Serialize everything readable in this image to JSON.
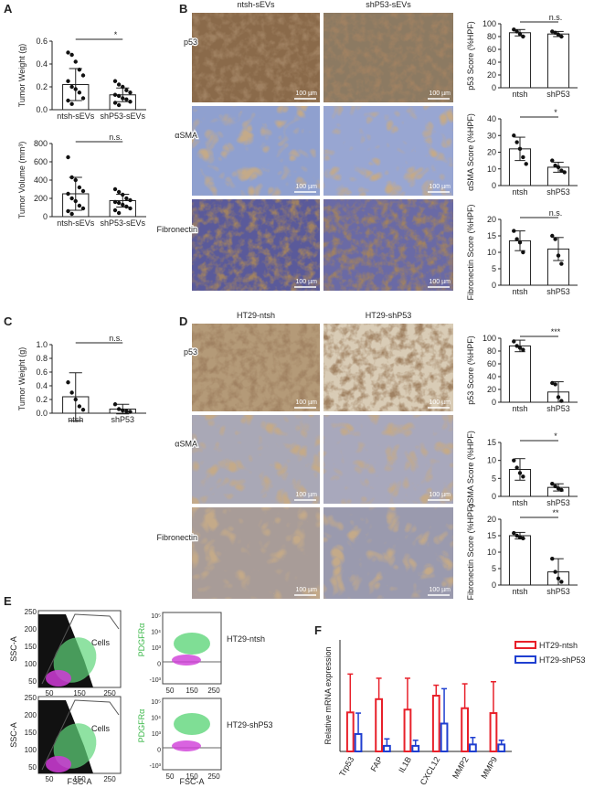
{
  "panel_labels": [
    "A",
    "B",
    "C",
    "D",
    "E",
    "F"
  ],
  "micrographs": [
    {
      "columns": [
        "ntsh-sEVs",
        "shP53-sEVs"
      ],
      "rows": [
        "p53",
        "αSMA",
        "Fibronectin"
      ],
      "scale_bar": "100 µm"
    },
    {
      "columns": [
        "HT29-ntsh",
        "HT29-shP53"
      ],
      "rows": [
        "p53",
        "αSMA",
        "Fibronectin"
      ],
      "scale_bar": "100 µm"
    }
  ],
  "flow": {
    "samples": [
      "HT29-ntsh",
      "HT29-shP53"
    ],
    "gate": "Cells",
    "x_label": "FSC-A",
    "y_label": "SSC-A",
    "y2_label": "PDGFRα",
    "x_ticks": [
      "50",
      "150",
      "250"
    ],
    "y_ticks": [
      "250",
      "200",
      "150",
      "100",
      "50"
    ],
    "y2_ticks": [
      "10⁵",
      "10⁴",
      "10³",
      "0",
      "-10³"
    ]
  },
  "chart_data": [
    {
      "type": "bar",
      "ylabel": "Tumor Weight (g)",
      "categories": [
        "ntsh-sEVs",
        "shP53-sEVs"
      ],
      "values": [
        0.22,
        0.13
      ],
      "errors": [
        0.14,
        0.06
      ],
      "points": [
        [
          0.5,
          0.48,
          0.42,
          0.35,
          0.3,
          0.25,
          0.2,
          0.18,
          0.15,
          0.1,
          0.08,
          0.05
        ],
        [
          0.25,
          0.22,
          0.2,
          0.17,
          0.15,
          0.13,
          0.12,
          0.1,
          0.09,
          0.07,
          0.06,
          0.04
        ]
      ],
      "ylim": [
        0,
        0.6
      ],
      "yticks": [
        {
          "value": 0,
          "label": "0.0"
        },
        0.2,
        0.4,
        0.6
      ],
      "annotation": "*"
    },
    {
      "type": "bar",
      "ylabel": "Tumor Volume (mm³)",
      "categories": [
        "ntsh-sEVs",
        "shP53-sEVs"
      ],
      "values": [
        250,
        175
      ],
      "errors": [
        180,
        70
      ],
      "points": [
        [
          650,
          430,
          400,
          320,
          280,
          250,
          200,
          170,
          120,
          90,
          60,
          30
        ],
        [
          300,
          270,
          240,
          200,
          180,
          160,
          150,
          130,
          110,
          90,
          70,
          40
        ]
      ],
      "ylim": [
        0,
        800
      ],
      "yticks": [
        0,
        200,
        400,
        600,
        800
      ],
      "annotation": "n.s."
    },
    {
      "type": "bar",
      "ylabel": "p53 Score (%HPF)",
      "categories": [
        "ntsh",
        "shP53"
      ],
      "values": [
        86,
        84
      ],
      "errors": [
        5,
        4
      ],
      "points": [
        [
          91,
          88,
          84,
          80
        ],
        [
          88,
          86,
          83,
          80
        ]
      ],
      "ylim": [
        0,
        100
      ],
      "yticks": [
        0,
        20,
        40,
        60,
        80,
        100
      ],
      "annotation": "n.s."
    },
    {
      "type": "bar",
      "ylabel": "αSMA Score (%HPF)",
      "categories": [
        "ntsh",
        "shP53"
      ],
      "values": [
        22,
        11
      ],
      "errors": [
        7,
        3
      ],
      "points": [
        [
          30,
          26,
          22,
          17,
          13
        ],
        [
          15,
          12,
          11,
          9,
          8
        ]
      ],
      "ylim": [
        0,
        40
      ],
      "yticks": [
        0,
        10,
        20,
        30,
        40
      ],
      "annotation": "*"
    },
    {
      "type": "bar",
      "ylabel": "Fibronectin Score (%HPF)",
      "categories": [
        "ntsh",
        "shP53"
      ],
      "values": [
        13.5,
        11
      ],
      "errors": [
        3,
        3.5
      ],
      "points": [
        [
          16.5,
          14,
          13,
          10
        ],
        [
          15,
          14,
          9,
          6.5
        ]
      ],
      "ylim": [
        0,
        20
      ],
      "yticks": [
        0,
        5,
        10,
        15,
        20
      ],
      "annotation": "n.s."
    },
    {
      "type": "bar",
      "ylabel": "Tumor Weight (g)",
      "categories": [
        "ntsh",
        "shP53"
      ],
      "values": [
        0.24,
        0.06
      ],
      "errors": [
        0.35,
        0.07
      ],
      "points": [
        [
          0.45,
          0.3,
          0.2,
          0.1,
          0.05
        ],
        [
          0.13,
          0.06,
          0.04,
          0.03,
          0.02
        ]
      ],
      "ylim": [
        0,
        1.0
      ],
      "yticks": [
        {
          "value": 0,
          "label": "0.0"
        },
        0.2,
        0.4,
        0.6,
        0.8,
        {
          "value": 1.0,
          "label": "1.0"
        }
      ],
      "annotation": "n.s."
    },
    {
      "type": "bar",
      "ylabel": "p53 Score (%HPF)",
      "categories": [
        "ntsh",
        "shP53"
      ],
      "values": [
        88,
        16
      ],
      "errors": [
        9,
        16
      ],
      "points": [
        [
          95,
          88,
          85,
          82
        ],
        [
          30,
          28,
          8,
          2
        ]
      ],
      "ylim": [
        0,
        100
      ],
      "yticks": [
        0,
        20,
        40,
        60,
        80,
        100
      ],
      "annotation": "***"
    },
    {
      "type": "bar",
      "ylabel": "αSMA Score (%HPF)",
      "categories": [
        "ntsh",
        "shP53"
      ],
      "values": [
        7.5,
        2.5
      ],
      "errors": [
        3,
        1
      ],
      "points": [
        [
          10,
          8,
          6.5,
          5.5
        ],
        [
          3.5,
          2.8,
          2.2,
          1.8
        ]
      ],
      "ylim": [
        0,
        15
      ],
      "yticks": [
        0,
        5,
        10,
        15
      ],
      "annotation": "*"
    },
    {
      "type": "bar",
      "ylabel": "Fibronectin Score (%HPF)",
      "categories": [
        "ntsh",
        "shP53"
      ],
      "values": [
        15,
        4
      ],
      "errors": [
        1,
        4
      ],
      "points": [
        [
          15.8,
          15,
          14.5,
          14.2
        ],
        [
          8,
          4,
          2,
          1
        ]
      ],
      "ylim": [
        0,
        20
      ],
      "yticks": [
        0,
        5,
        10,
        15,
        20
      ],
      "annotation": "**"
    },
    {
      "type": "grouped_bar",
      "ylabel": "Relative mRNA expression",
      "categories": [
        "Trp53",
        "FAP",
        "IL1B",
        "CXCL12",
        "MMP2",
        "MMP9"
      ],
      "series": [
        {
          "name": "HT29-ntsh",
          "color": "#e8202a",
          "values": [
            0.56,
            0.75,
            0.6,
            0.8,
            0.62,
            0.55
          ],
          "errors": [
            0.55,
            0.3,
            0.45,
            0.15,
            0.35,
            0.45
          ]
        },
        {
          "name": "HT29-shP53",
          "color": "#1f3fd0",
          "values": [
            0.25,
            0.08,
            0.08,
            0.4,
            0.1,
            0.1
          ],
          "errors": [
            0.3,
            0.1,
            0.08,
            0.5,
            0.1,
            0.06
          ]
        }
      ],
      "ylim": [
        0,
        1.6
      ]
    }
  ]
}
